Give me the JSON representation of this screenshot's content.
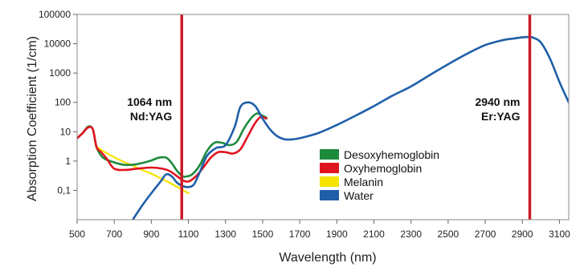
{
  "chart_data": {
    "type": "line",
    "title": "",
    "xlabel": "Wavelength (nm)",
    "ylabel": "Absorption Coefficient (1/cm)",
    "xlim": [
      500,
      3150
    ],
    "ylim": [
      0.01,
      100000
    ],
    "y_scale": "log",
    "x_ticks": [
      500,
      700,
      900,
      1100,
      1300,
      1500,
      1700,
      1900,
      2100,
      2300,
      2500,
      2700,
      2900,
      3100
    ],
    "x_tick_labels": [
      "500",
      "700",
      "900",
      "1100",
      "1300",
      "1500",
      "1700",
      "1900",
      "2100",
      "2300",
      "2500",
      "2700",
      "2900",
      "3100"
    ],
    "y_ticks": [
      0.1,
      1,
      10,
      100,
      1000,
      10000,
      100000
    ],
    "y_tick_labels": [
      "0,1",
      "1",
      "10",
      "100",
      "1000",
      "10000",
      "100000"
    ],
    "grid": false,
    "legend_position": "center-right",
    "series": [
      {
        "name": "Desoxyhemoglobin",
        "color": "#1e8a3c",
        "x": [
          500,
          530,
          560,
          585,
          605,
          640,
          700,
          750,
          800,
          850,
          900,
          940,
          980,
          1010,
          1040,
          1070,
          1090,
          1120,
          1160,
          1200,
          1240,
          1280,
          1320,
          1360,
          1400,
          1440,
          1470,
          1500,
          1520
        ],
        "y": [
          6,
          9,
          15,
          12,
          3,
          1.3,
          0.9,
          0.75,
          0.75,
          0.85,
          1.05,
          1.3,
          1.3,
          0.85,
          0.45,
          0.3,
          0.3,
          0.35,
          0.7,
          2.2,
          4.2,
          4.2,
          3.5,
          4.5,
          13,
          30,
          42,
          35,
          30
        ]
      },
      {
        "name": "Oxyhemoglobin",
        "color": "#e0141e",
        "x": [
          500,
          530,
          560,
          585,
          605,
          630,
          660,
          700,
          760,
          820,
          900,
          960,
          1000,
          1040,
          1070,
          1100,
          1140,
          1180,
          1220,
          1260,
          1300,
          1340,
          1380,
          1420,
          1460,
          1490,
          1520
        ],
        "y": [
          6,
          9,
          14,
          12,
          3,
          2,
          1.2,
          0.55,
          0.5,
          0.55,
          0.6,
          0.55,
          0.45,
          0.3,
          0.22,
          0.2,
          0.3,
          0.6,
          1.3,
          2.0,
          2.0,
          1.8,
          2.5,
          7,
          20,
          32,
          28
        ]
      },
      {
        "name": "Melanin",
        "color": "#f5e300",
        "x": [
          600,
          650,
          700,
          750,
          800,
          850,
          900,
          950,
          1000,
          1050,
          1100
        ],
        "y": [
          3.2,
          2.0,
          1.35,
          0.95,
          0.7,
          0.5,
          0.37,
          0.26,
          0.18,
          0.12,
          0.08
        ]
      },
      {
        "name": "Water",
        "color": "#1f5fa8",
        "x": [
          800,
          850,
          900,
          950,
          980,
          1010,
          1040,
          1070,
          1100,
          1130,
          1160,
          1200,
          1250,
          1300,
          1350,
          1380,
          1420,
          1460,
          1500,
          1540,
          1580,
          1620,
          1660,
          1700,
          1800,
          1900,
          2000,
          2100,
          2200,
          2300,
          2400,
          2500,
          2600,
          2700,
          2800,
          2850,
          2900,
          2940,
          2960,
          3000,
          3050,
          3100,
          3150
        ],
        "y": [
          0.01,
          0.03,
          0.08,
          0.2,
          0.35,
          0.3,
          0.18,
          0.14,
          0.13,
          0.16,
          0.4,
          1.5,
          2.8,
          3.5,
          15,
          70,
          100,
          75,
          28,
          12,
          7,
          5.5,
          5.5,
          6,
          9,
          17,
          35,
          75,
          170,
          350,
          850,
          2000,
          4500,
          9000,
          13500,
          15000,
          16500,
          17000,
          16000,
          11000,
          3000,
          500,
          100
        ]
      }
    ],
    "annotations": [
      {
        "x": 1064,
        "lines": [
          "1064 nm",
          "Nd:YAG"
        ],
        "color": "#cc1a2a"
      },
      {
        "x": 2940,
        "lines": [
          "2940 nm",
          "Er:YAG"
        ],
        "color": "#cc1a2a"
      }
    ]
  }
}
